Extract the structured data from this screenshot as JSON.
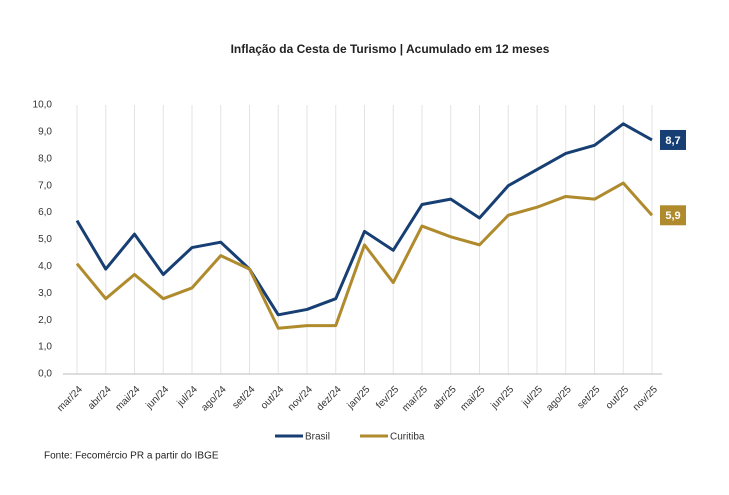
{
  "chart_data": {
    "type": "line",
    "title": "Inflação da Cesta de Turismo | Acumulado em 12 meses",
    "source": "Fonte: Fecomércio PR a partir do IBGE",
    "categories": [
      "mar/24",
      "abr/24",
      "mai/24",
      "jun/24",
      "jul/24",
      "ago/24",
      "set/24",
      "out/24",
      "nov/24",
      "dez/24",
      "jan/25",
      "fev/25",
      "mar/25",
      "abr/25",
      "mai/25",
      "jun/25",
      "jul/25",
      "ago/25",
      "set/25",
      "out/25",
      "nov/25"
    ],
    "series": [
      {
        "name": "Brasil",
        "color": "#173f73",
        "values": [
          5.7,
          3.9,
          5.2,
          3.7,
          4.7,
          4.9,
          3.9,
          2.2,
          2.4,
          2.8,
          5.3,
          4.6,
          6.3,
          6.5,
          5.8,
          7.0,
          7.6,
          8.2,
          8.5,
          9.3,
          8.7
        ],
        "value_labels": [
          null,
          null,
          null,
          null,
          null,
          null,
          null,
          null,
          null,
          null,
          null,
          null,
          null,
          null,
          null,
          null,
          null,
          null,
          null,
          null,
          "8,7"
        ]
      },
      {
        "name": "Curitiba",
        "color": "#b08b2e",
        "values": [
          4.1,
          2.8,
          3.7,
          2.8,
          3.2,
          4.4,
          3.9,
          1.7,
          1.8,
          1.8,
          4.8,
          3.4,
          5.5,
          5.1,
          4.8,
          5.9,
          6.2,
          6.6,
          6.5,
          7.1,
          5.9
        ],
        "value_labels": [
          null,
          null,
          null,
          null,
          null,
          null,
          null,
          null,
          null,
          null,
          null,
          null,
          null,
          null,
          null,
          null,
          null,
          null,
          null,
          null,
          "5,9"
        ]
      }
    ],
    "ylim": [
      0,
      10
    ],
    "yticks": [
      {
        "value": 0,
        "label": "0,0"
      },
      {
        "value": 1,
        "label": "1,0"
      },
      {
        "value": 2,
        "label": "2,0"
      },
      {
        "value": 3,
        "label": "3,0"
      },
      {
        "value": 4,
        "label": "4,0"
      },
      {
        "value": 5,
        "label": "5,0"
      },
      {
        "value": 6,
        "label": "6,0"
      },
      {
        "value": 7,
        "label": "7,0"
      },
      {
        "value": 8,
        "label": "8,0"
      },
      {
        "value": 9,
        "label": "9,0"
      },
      {
        "value": 10,
        "label": "10,0"
      }
    ],
    "legend": "bottom"
  }
}
